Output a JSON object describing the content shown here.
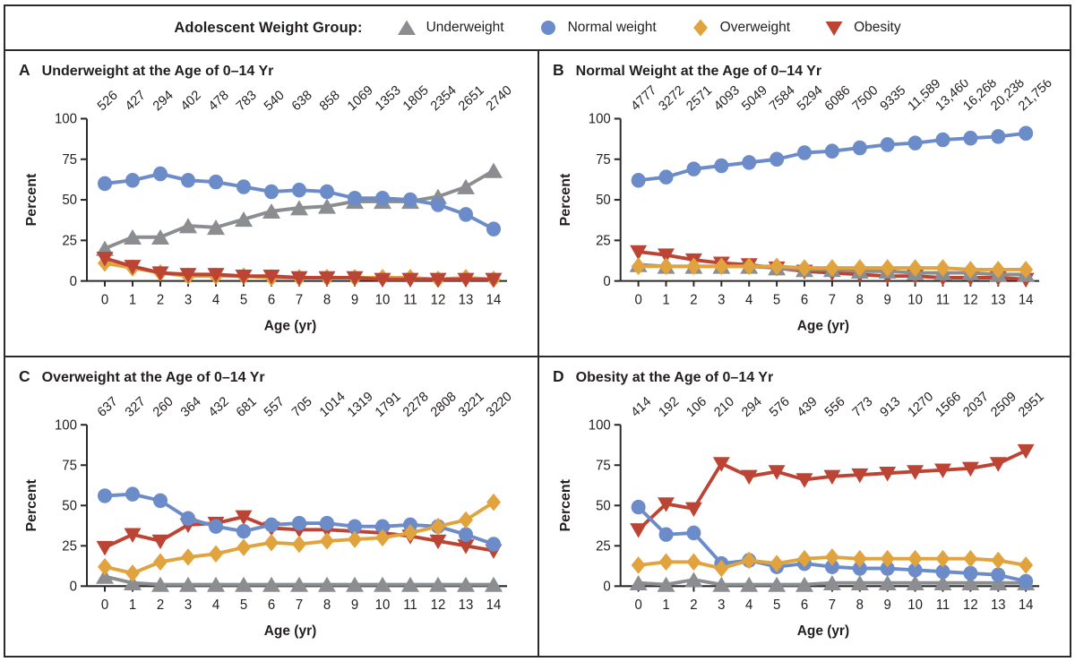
{
  "legend": {
    "label": "Adolescent Weight Group:",
    "items": [
      {
        "label": "Underweight",
        "shape": "triangle-up",
        "color": "#8b8d90"
      },
      {
        "label": "Normal weight",
        "shape": "circle",
        "color": "#6c8cc9"
      },
      {
        "label": "Overweight",
        "shape": "diamond",
        "color": "#e1a33e"
      },
      {
        "label": "Obesity",
        "shape": "triangle-down",
        "color": "#bc4434"
      }
    ]
  },
  "colors": {
    "axis": "#2b2b2b",
    "text": "#231f20"
  },
  "chart_data": [
    {
      "panel_letter": "A",
      "title": "Underweight at the Age of 0–14 Yr",
      "type": "line",
      "xlabel": "Age (yr)",
      "ylabel": "Percent",
      "x": [
        0,
        1,
        2,
        3,
        4,
        5,
        6,
        7,
        8,
        9,
        10,
        11,
        12,
        13,
        14
      ],
      "ylim": [
        0,
        100
      ],
      "yticks": [
        0,
        25,
        50,
        75,
        100
      ],
      "grid": false,
      "counts": [
        "526",
        "427",
        "294",
        "402",
        "478",
        "783",
        "540",
        "638",
        "858",
        "1069",
        "1353",
        "1805",
        "2354",
        "2651",
        "2740"
      ],
      "series": [
        {
          "name": "Underweight",
          "marker": "triangle-up",
          "color": "#8b8d90",
          "values": [
            20,
            27,
            27,
            34,
            33,
            38,
            43,
            45,
            46,
            49,
            49,
            49,
            52,
            58,
            68
          ]
        },
        {
          "name": "Normal weight",
          "marker": "circle",
          "color": "#6c8cc9",
          "values": [
            60,
            62,
            66,
            62,
            61,
            58,
            55,
            56,
            55,
            51,
            51,
            50,
            47,
            41,
            32
          ]
        },
        {
          "name": "Overweight",
          "marker": "diamond",
          "color": "#e1a33e",
          "values": [
            11,
            8,
            5,
            3,
            3,
            3,
            2,
            2,
            2,
            2,
            2,
            2,
            1,
            2,
            1
          ]
        },
        {
          "name": "Obesity",
          "marker": "triangle-down",
          "color": "#bc4434",
          "values": [
            14,
            9,
            5,
            4,
            4,
            3,
            3,
            2,
            2,
            2,
            1,
            1,
            1,
            1,
            1
          ]
        }
      ],
      "draw_order": [
        2,
        0,
        1,
        3
      ]
    },
    {
      "panel_letter": "B",
      "title": "Normal Weight at the Age of 0–14 Yr",
      "type": "line",
      "xlabel": "Age (yr)",
      "ylabel": "Percent",
      "x": [
        0,
        1,
        2,
        3,
        4,
        5,
        6,
        7,
        8,
        9,
        10,
        11,
        12,
        13,
        14
      ],
      "ylim": [
        0,
        100
      ],
      "yticks": [
        0,
        25,
        50,
        75,
        100
      ],
      "grid": false,
      "counts": [
        "4777",
        "3272",
        "2571",
        "4093",
        "5049",
        "7584",
        "5294",
        "6086",
        "7500",
        "9335",
        "11,589",
        "13,460",
        "16,268",
        "20,238",
        "21,756"
      ],
      "series": [
        {
          "name": "Underweight",
          "marker": "triangle-up",
          "color": "#8b8d90",
          "values": [
            10,
            9,
            9,
            9,
            9,
            8,
            7,
            7,
            6,
            6,
            5,
            5,
            5,
            4,
            4
          ]
        },
        {
          "name": "Normal weight",
          "marker": "circle",
          "color": "#6c8cc9",
          "values": [
            62,
            64,
            69,
            71,
            73,
            75,
            79,
            80,
            82,
            84,
            85,
            87,
            88,
            89,
            91
          ]
        },
        {
          "name": "Overweight",
          "marker": "diamond",
          "color": "#e1a33e",
          "values": [
            9,
            9,
            9,
            9,
            9,
            9,
            8,
            8,
            8,
            8,
            8,
            8,
            7,
            7,
            7
          ]
        },
        {
          "name": "Obesity",
          "marker": "triangle-down",
          "color": "#bc4434",
          "values": [
            18,
            16,
            13,
            11,
            10,
            8,
            6,
            5,
            4,
            3,
            3,
            2,
            2,
            2,
            1
          ]
        }
      ],
      "draw_order": [
        3,
        0,
        1,
        2
      ]
    },
    {
      "panel_letter": "C",
      "title": "Overweight at the Age of 0–14 Yr",
      "type": "line",
      "xlabel": "Age (yr)",
      "ylabel": "Percent",
      "x": [
        0,
        1,
        2,
        3,
        4,
        5,
        6,
        7,
        8,
        9,
        10,
        11,
        12,
        13,
        14
      ],
      "ylim": [
        0,
        100
      ],
      "yticks": [
        0,
        25,
        50,
        75,
        100
      ],
      "grid": false,
      "counts": [
        "637",
        "327",
        "260",
        "364",
        "432",
        "681",
        "557",
        "705",
        "1014",
        "1319",
        "1791",
        "2278",
        "2808",
        "3221",
        "3220"
      ],
      "series": [
        {
          "name": "Underweight",
          "marker": "triangle-up",
          "color": "#8b8d90",
          "values": [
            6,
            2,
            1,
            1,
            1,
            1,
            1,
            1,
            1,
            1,
            1,
            1,
            1,
            1,
            1
          ]
        },
        {
          "name": "Normal weight",
          "marker": "circle",
          "color": "#6c8cc9",
          "values": [
            56,
            57,
            53,
            42,
            37,
            34,
            38,
            39,
            39,
            37,
            37,
            38,
            37,
            32,
            26
          ]
        },
        {
          "name": "Overweight",
          "marker": "diamond",
          "color": "#e1a33e",
          "values": [
            12,
            8,
            15,
            18,
            20,
            24,
            27,
            26,
            28,
            29,
            30,
            33,
            37,
            41,
            52
          ]
        },
        {
          "name": "Obesity",
          "marker": "triangle-down",
          "color": "#bc4434",
          "values": [
            24,
            32,
            28,
            38,
            39,
            43,
            36,
            35,
            35,
            34,
            33,
            31,
            28,
            25,
            22
          ]
        }
      ],
      "draw_order": [
        0,
        3,
        1,
        2
      ]
    },
    {
      "panel_letter": "D",
      "title": "Obesity at the Age of 0–14 Yr",
      "type": "line",
      "xlabel": "Age (yr)",
      "ylabel": "Percent",
      "x": [
        0,
        1,
        2,
        3,
        4,
        5,
        6,
        7,
        8,
        9,
        10,
        11,
        12,
        13,
        14
      ],
      "ylim": [
        0,
        100
      ],
      "yticks": [
        0,
        25,
        50,
        75,
        100
      ],
      "grid": false,
      "counts": [
        "414",
        "192",
        "106",
        "210",
        "294",
        "576",
        "439",
        "556",
        "773",
        "913",
        "1270",
        "1566",
        "2037",
        "2509",
        "2951"
      ],
      "series": [
        {
          "name": "Underweight",
          "marker": "triangle-up",
          "color": "#8b8d90",
          "values": [
            2,
            1,
            4,
            1,
            1,
            1,
            1,
            2,
            2,
            2,
            2,
            2,
            2,
            2,
            2
          ]
        },
        {
          "name": "Normal weight",
          "marker": "circle",
          "color": "#6c8cc9",
          "values": [
            49,
            32,
            33,
            14,
            16,
            12,
            14,
            12,
            11,
            11,
            10,
            9,
            8,
            7,
            3
          ]
        },
        {
          "name": "Overweight",
          "marker": "diamond",
          "color": "#e1a33e",
          "values": [
            13,
            15,
            15,
            11,
            16,
            14,
            17,
            18,
            17,
            17,
            17,
            17,
            17,
            16,
            13
          ]
        },
        {
          "name": "Obesity",
          "marker": "triangle-down",
          "color": "#bc4434",
          "values": [
            35,
            51,
            48,
            76,
            68,
            71,
            66,
            68,
            69,
            70,
            71,
            72,
            73,
            76,
            84
          ]
        }
      ],
      "draw_order": [
        3,
        0,
        1,
        2
      ]
    }
  ]
}
